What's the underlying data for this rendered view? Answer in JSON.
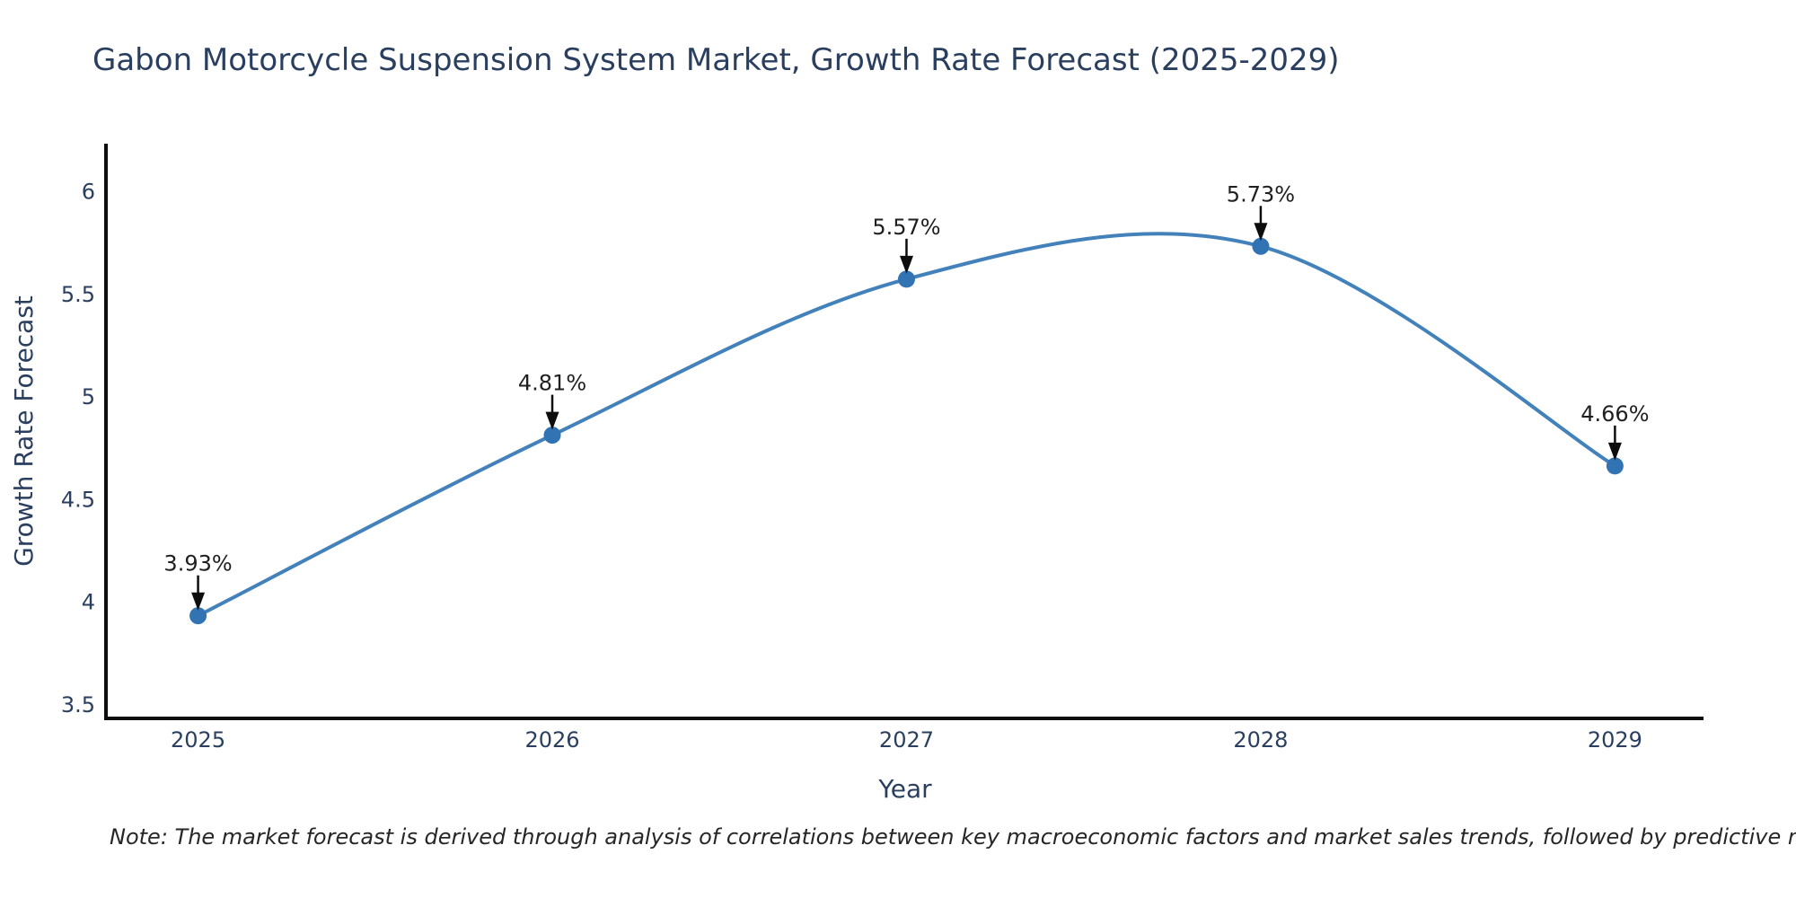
{
  "title": "Gabon Motorcycle Suspension System Market, Growth Rate Forecast (2025-2029)",
  "note": "Note: The market forecast is derived through analysis of correlations between key macroeconomic factors and market sales trends, followed by predictive modeling to project future sales",
  "chart_data": {
    "type": "line",
    "line_shape": "spline",
    "title": "Gabon Motorcycle Suspension System Market, Growth Rate Forecast (2025-2029)",
    "xlabel": "Year",
    "ylabel": "Growth Rate Forecast",
    "categories": [
      2025,
      2026,
      2027,
      2028,
      2029
    ],
    "values": [
      3.93,
      4.81,
      5.57,
      5.73,
      4.66
    ],
    "point_labels": [
      "3.93%",
      "4.81%",
      "5.57%",
      "5.73%",
      "4.66%"
    ],
    "series": [
      {
        "name": "Growth Rate Forecast",
        "values": [
          3.93,
          4.81,
          5.57,
          5.73,
          4.66
        ]
      }
    ],
    "yticks": [
      3.5,
      4,
      4.5,
      5,
      5.5,
      6
    ],
    "ytick_labels": [
      "3.5",
      "4",
      "4.5",
      "5",
      "5.5",
      "6"
    ],
    "xtick_labels": [
      "2025",
      "2026",
      "2027",
      "2028",
      "2029"
    ],
    "ylim": [
      3.43,
      6.23
    ],
    "xlim": [
      2024.74,
      2029.25
    ],
    "grid": false,
    "legend": false,
    "annotations_have_arrows": true,
    "colors": {
      "background": "#ffffff",
      "line": "#4381bb",
      "marker": "#3273b3",
      "axis_line": "#0d0d0d",
      "tick_label": "#2a3f5f",
      "title": "#2a3f5f",
      "axis_title": "#2a3f5f",
      "annotation_text": "#1f1f1f",
      "arrow": "#0d0d0d",
      "note_text": "#262626"
    }
  }
}
